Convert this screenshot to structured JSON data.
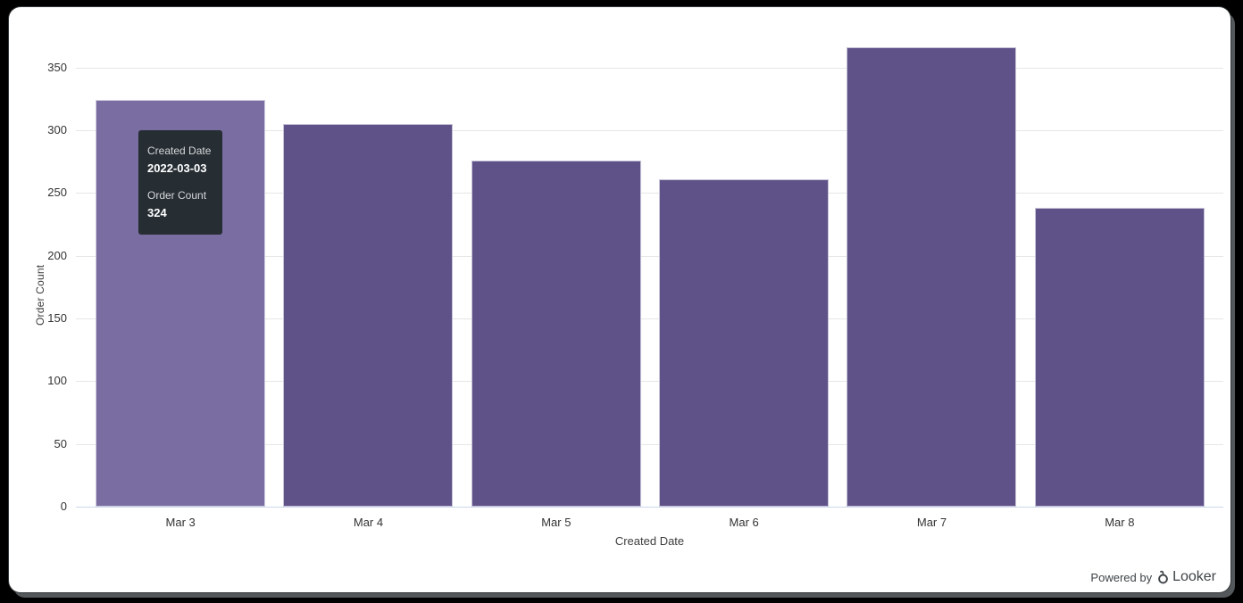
{
  "chart_data": {
    "type": "bar",
    "categories": [
      "Mar 3",
      "Mar 4",
      "Mar 5",
      "Mar 6",
      "Mar 7",
      "Mar 8"
    ],
    "values": [
      324,
      305,
      276,
      261,
      366,
      238
    ],
    "xlabel": "Created Date",
    "ylabel": "Order Count",
    "ylim": [
      0,
      384
    ],
    "yticks": [
      0,
      50,
      100,
      150,
      200,
      250,
      300,
      350
    ],
    "grid": "horizontal",
    "legend": "none",
    "bar_color": "#5E5289",
    "bar_hover_color": "#7A6DA2",
    "hovered_index": 0
  },
  "tooltip": {
    "visible": true,
    "bg_color": "#262D33",
    "rows": [
      {
        "label": "Created Date",
        "value": "2022-03-03"
      },
      {
        "label": "Order Count",
        "value": "324"
      }
    ]
  },
  "footer": {
    "powered_by": "Powered by",
    "brand": "Looker",
    "text_color": "#3e4347"
  }
}
